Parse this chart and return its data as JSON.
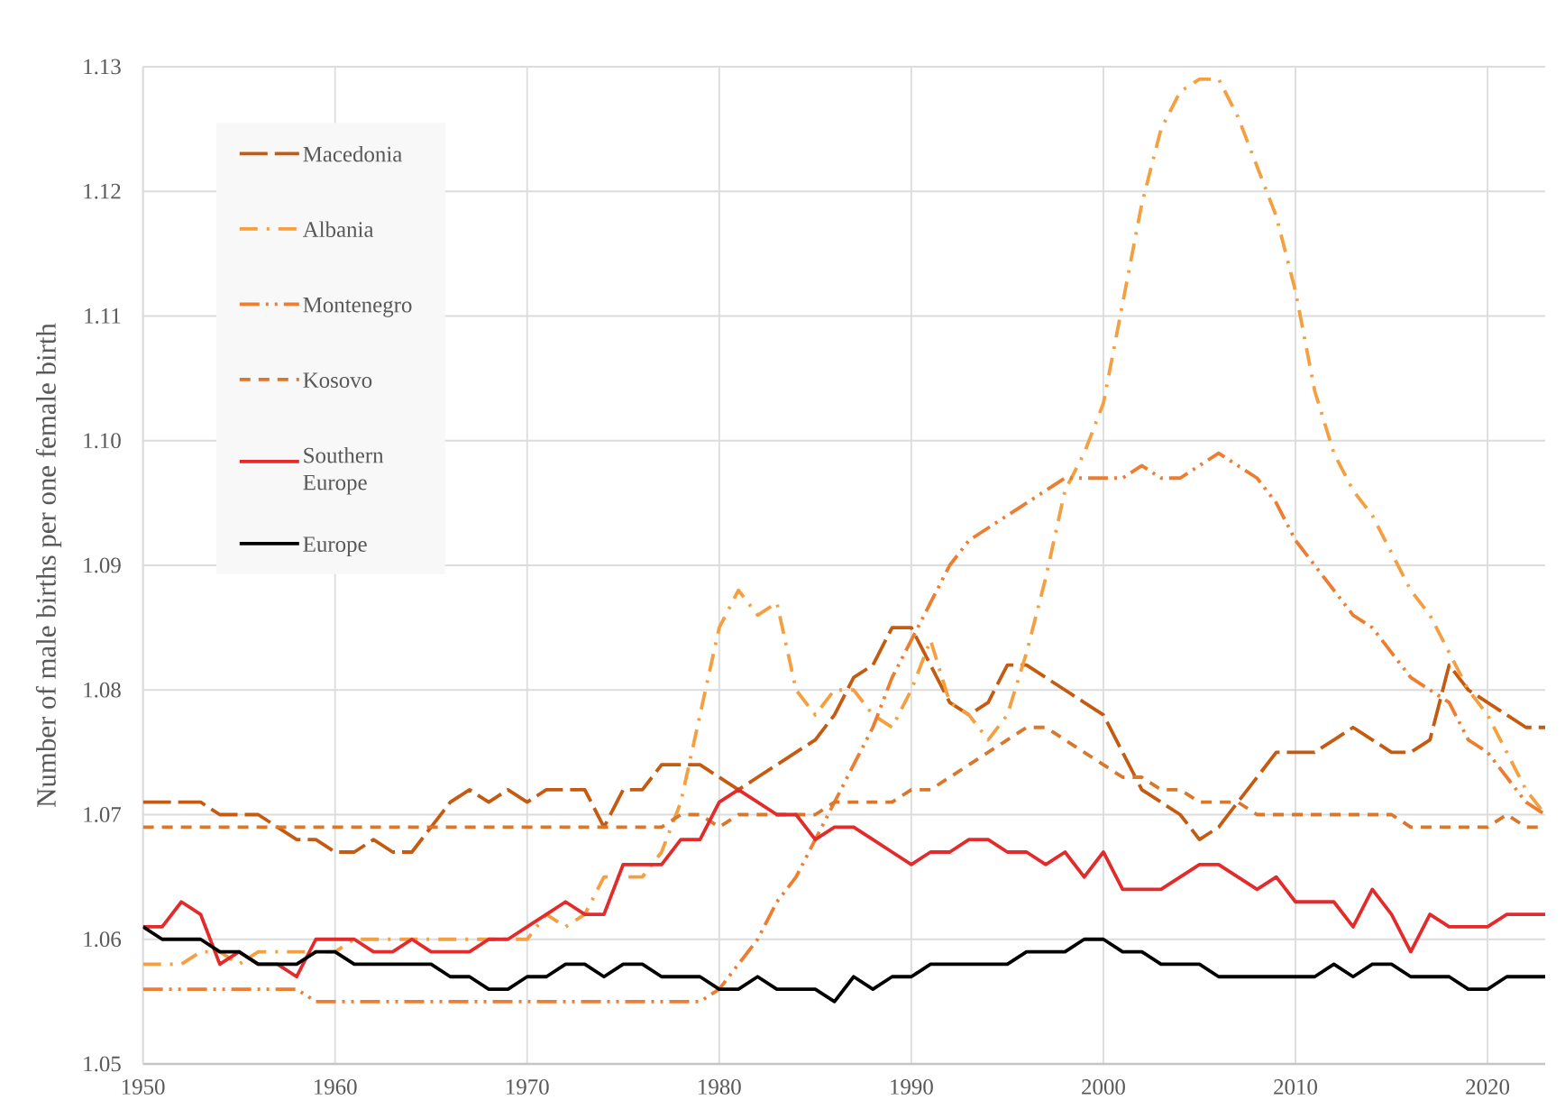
{
  "chart_data": {
    "type": "line",
    "ylabel": "Number of male births per one female birth",
    "x": [
      1950,
      1951,
      1952,
      1953,
      1954,
      1955,
      1956,
      1957,
      1958,
      1959,
      1960,
      1961,
      1962,
      1963,
      1964,
      1965,
      1966,
      1967,
      1968,
      1969,
      1970,
      1971,
      1972,
      1973,
      1974,
      1975,
      1976,
      1977,
      1978,
      1979,
      1980,
      1981,
      1982,
      1983,
      1984,
      1985,
      1986,
      1987,
      1988,
      1989,
      1990,
      1991,
      1992,
      1993,
      1994,
      1995,
      1996,
      1997,
      1998,
      1999,
      2000,
      2001,
      2002,
      2003,
      2004,
      2005,
      2006,
      2007,
      2008,
      2009,
      2010,
      2011,
      2012,
      2013,
      2014,
      2015,
      2016,
      2017,
      2018,
      2019,
      2020,
      2021,
      2022,
      2023
    ],
    "series": [
      {
        "name": "Macedonia",
        "color": "#c55a11",
        "line_style": "longdash",
        "values": [
          1.071,
          1.071,
          1.071,
          1.071,
          1.07,
          1.07,
          1.07,
          1.069,
          1.068,
          1.068,
          1.067,
          1.067,
          1.068,
          1.067,
          1.067,
          1.069,
          1.071,
          1.072,
          1.071,
          1.072,
          1.071,
          1.072,
          1.072,
          1.072,
          1.069,
          1.072,
          1.072,
          1.074,
          1.074,
          1.074,
          1.073,
          1.072,
          1.073,
          1.074,
          1.075,
          1.076,
          1.078,
          1.081,
          1.082,
          1.085,
          1.085,
          1.082,
          1.079,
          1.078,
          1.079,
          1.082,
          1.082,
          1.081,
          1.08,
          1.079,
          1.078,
          1.075,
          1.072,
          1.071,
          1.07,
          1.068,
          1.069,
          1.071,
          1.073,
          1.075,
          1.075,
          1.075,
          1.076,
          1.077,
          1.076,
          1.075,
          1.075,
          1.076,
          1.082,
          1.08,
          1.079,
          1.078,
          1.077,
          1.077
        ]
      },
      {
        "name": "Albania",
        "color": "#f4a040",
        "line_style": "dashdot",
        "values": [
          1.058,
          1.058,
          1.058,
          1.059,
          1.059,
          1.058,
          1.059,
          1.059,
          1.059,
          1.059,
          1.059,
          1.06,
          1.06,
          1.06,
          1.06,
          1.06,
          1.06,
          1.06,
          1.06,
          1.06,
          1.06,
          1.062,
          1.061,
          1.062,
          1.065,
          1.065,
          1.065,
          1.067,
          1.071,
          1.078,
          1.085,
          1.088,
          1.086,
          1.087,
          1.08,
          1.078,
          1.08,
          1.08,
          1.078,
          1.077,
          1.08,
          1.084,
          1.079,
          1.078,
          1.076,
          1.078,
          1.083,
          1.089,
          1.096,
          1.099,
          1.103,
          1.111,
          1.119,
          1.125,
          1.128,
          1.129,
          1.129,
          1.126,
          1.122,
          1.118,
          1.112,
          1.104,
          1.099,
          1.096,
          1.094,
          1.091,
          1.088,
          1.086,
          1.083,
          1.08,
          1.078,
          1.075,
          1.072,
          1.07
        ]
      },
      {
        "name": "Montenegro",
        "color": "#ed7d31",
        "line_style": "dashdotdot",
        "values": [
          1.056,
          1.056,
          1.056,
          1.056,
          1.056,
          1.056,
          1.056,
          1.056,
          1.056,
          1.055,
          1.055,
          1.055,
          1.055,
          1.055,
          1.055,
          1.055,
          1.055,
          1.055,
          1.055,
          1.055,
          1.055,
          1.055,
          1.055,
          1.055,
          1.055,
          1.055,
          1.055,
          1.055,
          1.055,
          1.055,
          1.056,
          1.058,
          1.06,
          1.063,
          1.065,
          1.068,
          1.071,
          1.074,
          1.077,
          1.081,
          1.084,
          1.087,
          1.09,
          1.092,
          1.093,
          1.094,
          1.095,
          1.096,
          1.097,
          1.097,
          1.097,
          1.097,
          1.098,
          1.097,
          1.097,
          1.098,
          1.099,
          1.098,
          1.097,
          1.095,
          1.092,
          1.09,
          1.088,
          1.086,
          1.085,
          1.083,
          1.081,
          1.08,
          1.079,
          1.076,
          1.075,
          1.073,
          1.071,
          1.07
        ]
      },
      {
        "name": "Kosovo",
        "color": "#d9772d",
        "line_style": "dashed",
        "values": [
          1.069,
          1.069,
          1.069,
          1.069,
          1.069,
          1.069,
          1.069,
          1.069,
          1.069,
          1.069,
          1.069,
          1.069,
          1.069,
          1.069,
          1.069,
          1.069,
          1.069,
          1.069,
          1.069,
          1.069,
          1.069,
          1.069,
          1.069,
          1.069,
          1.069,
          1.069,
          1.069,
          1.069,
          1.07,
          1.07,
          1.069,
          1.07,
          1.07,
          1.07,
          1.07,
          1.07,
          1.071,
          1.071,
          1.071,
          1.071,
          1.072,
          1.072,
          1.073,
          1.074,
          1.075,
          1.076,
          1.077,
          1.077,
          1.076,
          1.075,
          1.074,
          1.073,
          1.073,
          1.072,
          1.072,
          1.071,
          1.071,
          1.071,
          1.07,
          1.07,
          1.07,
          1.07,
          1.07,
          1.07,
          1.07,
          1.07,
          1.069,
          1.069,
          1.069,
          1.069,
          1.069,
          1.07,
          1.069,
          1.069
        ]
      },
      {
        "name": "Southern Europe",
        "color": "#e32b2b",
        "line_style": "solid",
        "values": [
          1.061,
          1.061,
          1.063,
          1.062,
          1.058,
          1.059,
          1.058,
          1.058,
          1.057,
          1.06,
          1.06,
          1.06,
          1.059,
          1.059,
          1.06,
          1.059,
          1.059,
          1.059,
          1.06,
          1.06,
          1.061,
          1.062,
          1.063,
          1.062,
          1.062,
          1.066,
          1.066,
          1.066,
          1.068,
          1.068,
          1.071,
          1.072,
          1.071,
          1.07,
          1.07,
          1.068,
          1.069,
          1.069,
          1.068,
          1.067,
          1.066,
          1.067,
          1.067,
          1.068,
          1.068,
          1.067,
          1.067,
          1.066,
          1.067,
          1.065,
          1.067,
          1.064,
          1.064,
          1.064,
          1.065,
          1.066,
          1.066,
          1.065,
          1.064,
          1.065,
          1.063,
          1.063,
          1.063,
          1.061,
          1.064,
          1.062,
          1.059,
          1.062,
          1.061,
          1.061,
          1.061,
          1.062,
          1.062,
          1.062
        ]
      },
      {
        "name": "Europe",
        "color": "#000000",
        "line_style": "solid",
        "values": [
          1.061,
          1.06,
          1.06,
          1.06,
          1.059,
          1.059,
          1.058,
          1.058,
          1.058,
          1.059,
          1.059,
          1.058,
          1.058,
          1.058,
          1.058,
          1.058,
          1.057,
          1.057,
          1.056,
          1.056,
          1.057,
          1.057,
          1.058,
          1.058,
          1.057,
          1.058,
          1.058,
          1.057,
          1.057,
          1.057,
          1.056,
          1.056,
          1.057,
          1.056,
          1.056,
          1.056,
          1.055,
          1.057,
          1.056,
          1.057,
          1.057,
          1.058,
          1.058,
          1.058,
          1.058,
          1.058,
          1.059,
          1.059,
          1.059,
          1.06,
          1.06,
          1.059,
          1.059,
          1.058,
          1.058,
          1.058,
          1.057,
          1.057,
          1.057,
          1.057,
          1.057,
          1.057,
          1.058,
          1.057,
          1.058,
          1.058,
          1.057,
          1.057,
          1.057,
          1.056,
          1.056,
          1.057,
          1.057,
          1.057
        ]
      }
    ],
    "xlim": [
      1950,
      2023
    ],
    "ylim": [
      1.05,
      1.13
    ],
    "xticks": [
      1950,
      1960,
      1970,
      1980,
      1990,
      2000,
      2010,
      2020
    ],
    "yticks": [
      {
        "value": 1.05,
        "label": "1.05"
      },
      {
        "value": 1.06,
        "label": "1.06"
      },
      {
        "value": 1.07,
        "label": "1.07"
      },
      {
        "value": 1.08,
        "label": "1.08"
      },
      {
        "value": 1.09,
        "label": "1.09"
      },
      {
        "value": 1.1,
        "label": "1.10"
      },
      {
        "value": 1.11,
        "label": "1.11"
      },
      {
        "value": 1.12,
        "label": "1.12"
      },
      {
        "value": 1.13,
        "label": "1.13"
      }
    ],
    "grid": true,
    "legend": "top left"
  }
}
